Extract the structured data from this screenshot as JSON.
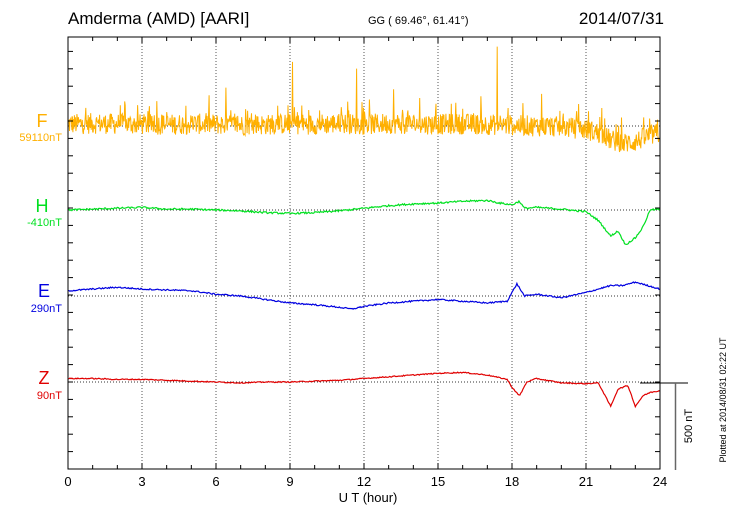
{
  "header": {
    "station": "Amderma (AMD)  [AARI]",
    "coords": "GG ( 69.46°,  61.41°)",
    "date": "2014/07/31"
  },
  "plotted_note": "Plotted at 2014/08/31  02:22  UT",
  "scale_bar_label": "500 nT",
  "colors": {
    "F": "#ffb000",
    "H": "#00e020",
    "E": "#0000e0",
    "Z": "#e00000",
    "axis": "#000000",
    "grid": "#000000"
  },
  "chart_data": {
    "type": "line",
    "title": "Amderma (AMD)  [AARI]",
    "xlabel": "U T (hour)",
    "xlim": [
      0,
      24
    ],
    "xticks": [
      0,
      3,
      6,
      9,
      12,
      15,
      18,
      21,
      24
    ],
    "xtick_labels": [
      "0",
      "3",
      "6",
      "9",
      "12",
      "15",
      "18",
      "21",
      "24"
    ],
    "scale_nT": 500,
    "grid": "dotted verticals every 3 hours; dotted baselines per component",
    "series": [
      {
        "name": "F",
        "baseline_label": "59110nT",
        "color": "#ffb000",
        "noise_nT": 60,
        "x": [
          0,
          1,
          2,
          3,
          4,
          5,
          6,
          7,
          8,
          9,
          10,
          11,
          12,
          13,
          14,
          15,
          16,
          17,
          18,
          19,
          20,
          21,
          21.5,
          22,
          22.5,
          23,
          23.5,
          24
        ],
        "y": [
          10,
          15,
          12,
          10,
          8,
          12,
          10,
          5,
          8,
          12,
          10,
          15,
          8,
          15,
          12,
          10,
          12,
          8,
          5,
          0,
          -5,
          -20,
          -40,
          -80,
          -100,
          -90,
          -60,
          -40
        ],
        "spikes": [
          [
            2.3,
            180
          ],
          [
            6.4,
            180
          ],
          [
            9.1,
            300
          ],
          [
            11.7,
            350
          ],
          [
            13.2,
            150
          ],
          [
            17.4,
            400
          ],
          [
            19.2,
            180
          ]
        ]
      },
      {
        "name": "H",
        "baseline_label": "-410nT",
        "color": "#00e020",
        "noise_nT": 5,
        "x": [
          0,
          1,
          2,
          3,
          4,
          5,
          6,
          7,
          8,
          9,
          10,
          11,
          12,
          13,
          14,
          15,
          16,
          17,
          17.5,
          18,
          18.3,
          18.5,
          19,
          20,
          21,
          21.5,
          22,
          22.3,
          22.6,
          23,
          23.3,
          23.6,
          24
        ],
        "y": [
          0,
          5,
          10,
          15,
          5,
          5,
          0,
          -5,
          -15,
          -20,
          -15,
          -5,
          10,
          25,
          35,
          40,
          50,
          55,
          40,
          30,
          50,
          10,
          15,
          5,
          -10,
          -60,
          -150,
          -120,
          -200,
          -160,
          -100,
          0,
          5
        ]
      },
      {
        "name": "E",
        "baseline_label": "290nT",
        "color": "#0000e0",
        "noise_nT": 4,
        "x": [
          0,
          1,
          2,
          3,
          4,
          5,
          6,
          7,
          8,
          9,
          10,
          11,
          11.5,
          12,
          13,
          14,
          15,
          16,
          17,
          17.8,
          18.2,
          18.5,
          19,
          20,
          21,
          22,
          22.5,
          23,
          23.5,
          24
        ],
        "y": [
          30,
          40,
          50,
          40,
          35,
          30,
          10,
          0,
          -20,
          -40,
          -50,
          -65,
          -75,
          -60,
          -40,
          -30,
          -20,
          -30,
          -40,
          -30,
          70,
          0,
          10,
          -10,
          20,
          60,
          60,
          80,
          60,
          40
        ]
      },
      {
        "name": "Z",
        "baseline_label": "90nT",
        "color": "#e00000",
        "noise_nT": 3,
        "x": [
          0,
          1,
          2,
          3,
          4,
          5,
          6,
          7,
          8,
          9,
          10,
          11,
          12,
          13,
          14,
          15,
          16,
          17,
          17.8,
          18,
          18.3,
          18.6,
          19,
          20,
          21,
          21.5,
          22,
          22.3,
          22.7,
          23,
          23.3,
          23.6,
          24
        ],
        "y": [
          20,
          20,
          15,
          15,
          10,
          5,
          0,
          -5,
          0,
          0,
          5,
          10,
          20,
          30,
          40,
          50,
          55,
          40,
          15,
          -30,
          -80,
          0,
          20,
          -5,
          -10,
          -5,
          -140,
          -40,
          -20,
          -140,
          -80,
          -60,
          -50
        ]
      }
    ]
  }
}
